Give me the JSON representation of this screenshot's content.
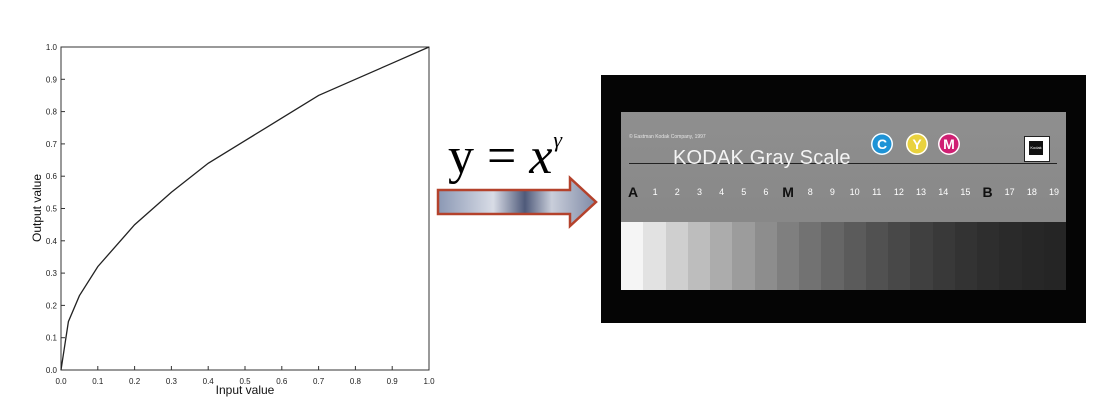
{
  "equation": {
    "lhs": "y = ",
    "var": "x",
    "exponent": "γ"
  },
  "chart_data": {
    "type": "line",
    "xlabel": "Input value",
    "ylabel": "Output value",
    "xlim": [
      0.0,
      1.0
    ],
    "ylim": [
      0.0,
      1.0
    ],
    "x_ticks": [
      0.0,
      0.1,
      0.2,
      0.3,
      0.4,
      0.5,
      0.6,
      0.7,
      0.8,
      0.9,
      1.0
    ],
    "y_ticks": [
      0.0,
      0.1,
      0.2,
      0.3,
      0.4,
      0.5,
      0.6,
      0.7,
      0.8,
      0.9,
      1.0
    ],
    "x_tick_labels": [
      "0.0",
      "0.1",
      "0.2",
      "0.3",
      "0.4",
      "0.5",
      "0.6",
      "0.7",
      "0.8",
      "0.9",
      "1.0"
    ],
    "y_tick_labels": [
      "0.0",
      "0.1",
      "0.2",
      "0.3",
      "0.4",
      "0.5",
      "0.6",
      "0.7",
      "0.8",
      "0.9",
      "1.0"
    ],
    "grid": false,
    "series": [
      {
        "x": [
          0.0,
          0.02,
          0.05,
          0.1,
          0.2,
          0.3,
          0.4,
          0.5,
          0.6,
          0.7,
          0.8,
          0.9,
          1.0
        ],
        "y": [
          0.0,
          0.15,
          0.23,
          0.32,
          0.45,
          0.55,
          0.64,
          0.71,
          0.78,
          0.85,
          0.9,
          0.95,
          1.0
        ]
      }
    ]
  },
  "kodak": {
    "copyright": "© Eastman Kodak Company, 1997",
    "title": "KODAK Gray Scale",
    "cym": [
      "C",
      "Y",
      "M"
    ],
    "logo_text": "Kodak",
    "step_labels": [
      "A",
      "1",
      "2",
      "3",
      "4",
      "5",
      "6",
      "M",
      "8",
      "9",
      "10",
      "11",
      "12",
      "13",
      "14",
      "15",
      "B",
      "17",
      "18",
      "19"
    ],
    "patch_colors": [
      "#f5f5f5",
      "#e2e2e2",
      "#cfcfcf",
      "#bdbdbd",
      "#acacac",
      "#9c9c9c",
      "#8d8d8d",
      "#7f7f7f",
      "#727272",
      "#666666",
      "#5b5b5b",
      "#515151",
      "#484848",
      "#404040",
      "#393939",
      "#333333",
      "#2e2e2e",
      "#2a2a2a",
      "#272727",
      "#252525"
    ],
    "colors": {
      "cyan": "#1e93d6",
      "yellow": "#e9d23e",
      "magenta": "#d01f73"
    }
  },
  "arrow": {
    "fill_stops": [
      "#8b98b4",
      "#d8dce6",
      "#4f5a7a",
      "#c9ceda",
      "#7f8aa6"
    ],
    "border": "#b4422c"
  }
}
